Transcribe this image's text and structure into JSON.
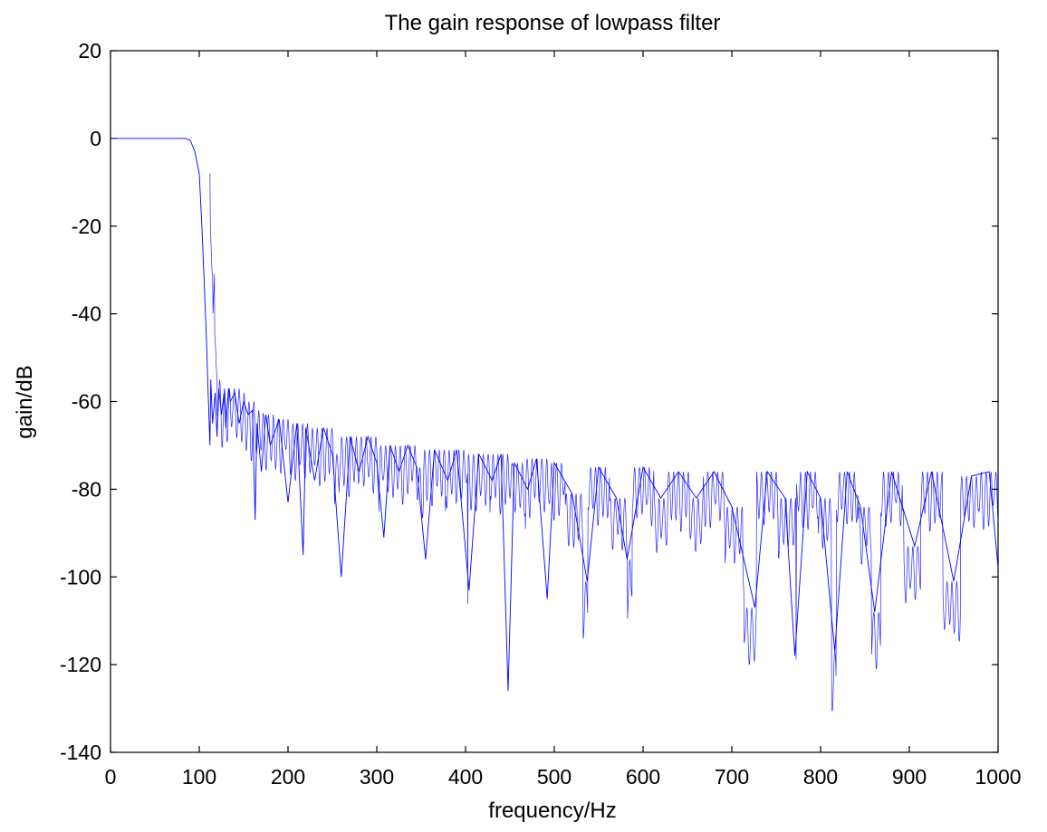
{
  "chart_data": {
    "type": "line",
    "title": "The gain response of lowpass filter",
    "xlabel": "frequency/Hz",
    "ylabel": "gain/dB",
    "xlim": [
      0,
      1000
    ],
    "ylim": [
      -140,
      20
    ],
    "xticks": [
      0,
      100,
      200,
      300,
      400,
      500,
      600,
      700,
      800,
      900,
      1000
    ],
    "yticks": [
      20,
      0,
      -20,
      -40,
      -60,
      -80,
      -100,
      -120,
      -140
    ],
    "grid": false,
    "series": [
      {
        "color": "#0000ff",
        "x": [
          0,
          30,
          60,
          85,
          90,
          95,
          100,
          103,
          105,
          108,
          110,
          112,
          113,
          115,
          118,
          120,
          122,
          125,
          128,
          130,
          133,
          135,
          140,
          145,
          150,
          155,
          160,
          163,
          165,
          170,
          175,
          180,
          190,
          200,
          210,
          217,
          220,
          230,
          240,
          250,
          260,
          270,
          280,
          290,
          300,
          308,
          315,
          325,
          335,
          345,
          355,
          365,
          380,
          390,
          404,
          415,
          430,
          440,
          448,
          455,
          470,
          480,
          492,
          500,
          520,
          537,
          550,
          570,
          582,
          600,
          620,
          640,
          660,
          680,
          700,
          726,
          740,
          760,
          771,
          785,
          800,
          816,
          830,
          845,
          861,
          880,
          906,
          925,
          950,
          970,
          990,
          1000
        ],
        "y": [
          0,
          0,
          0,
          0,
          -0.5,
          -3,
          -8,
          -20,
          -30,
          -45,
          -58,
          -70,
          -55,
          -65,
          -58,
          -68,
          -57,
          -63,
          -58,
          -66,
          -57,
          -60,
          -58,
          -65,
          -60,
          -63,
          -62,
          -87,
          -65,
          -76,
          -63,
          -70,
          -64,
          -83,
          -65,
          -95,
          -66,
          -78,
          -66,
          -72,
          -100,
          -68,
          -76,
          -68,
          -74,
          -91,
          -70,
          -76,
          -70,
          -75,
          -96,
          -71,
          -78,
          -71,
          -103,
          -72,
          -78,
          -72,
          -126,
          -74,
          -80,
          -73,
          -105,
          -74,
          -81,
          -101,
          -75,
          -82,
          -96,
          -75,
          -82,
          -76,
          -82,
          -76,
          -84,
          -107,
          -76,
          -82,
          -118,
          -76,
          -82,
          -117,
          -76,
          -84,
          -108,
          -76,
          -93,
          -76,
          -101,
          -77,
          -76,
          -98
        ]
      }
    ]
  }
}
